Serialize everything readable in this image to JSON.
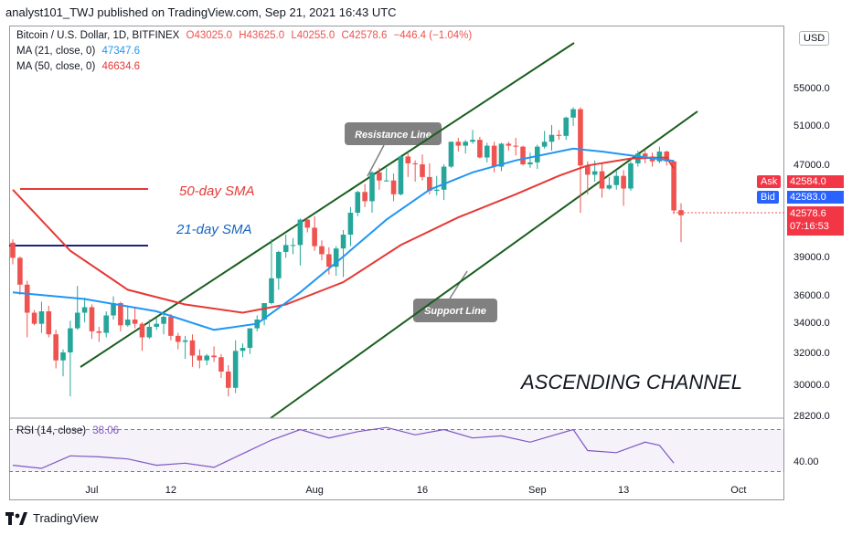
{
  "header": {
    "publisher": "analyst101_TWJ published on TradingView.com, Sep 21, 2021 16:43 UTC"
  },
  "symbol": {
    "title": "Bitcoin / U.S. Dollar, 1D, BITFINEX",
    "open": "O43025.0",
    "high": "H43625.0",
    "low": "L40255.0",
    "close": "C42578.6",
    "change": "−446.4 (−1.04%)"
  },
  "indicators": {
    "ma21_label": "MA (21, close, 0)",
    "ma21_value": "47347.6",
    "ma50_label": "MA (50, close, 0)",
    "ma50_value": "46634.6",
    "rsi_label": "RSI (14, close)",
    "rsi_value": "38.06"
  },
  "annotations": {
    "sma50": "50-day SMA",
    "sma21": "21-day SMA",
    "resistance": "Resistance Line",
    "support": "Support Line",
    "channel": "ASCENDING CHANNEL"
  },
  "price_axis": {
    "currency": "USD",
    "labels": [
      "55000.0",
      "51000.0",
      "47000.0",
      "39000.0",
      "36000.0",
      "34000.0",
      "32000.0",
      "30000.0",
      "28200.0"
    ],
    "ask_label": "Ask",
    "ask_value": "42584.0",
    "bid_label": "Bid",
    "bid_value": "42583.0",
    "last_value": "42578.6",
    "countdown": "07:16:53",
    "rsi_label": "40.00"
  },
  "date_axis": {
    "labels": [
      "Jul",
      "12",
      "Aug",
      "16",
      "Sep",
      "13",
      "Oct"
    ]
  },
  "footer": {
    "brand": "TradingView"
  },
  "colors": {
    "up": "#26a69a",
    "down": "#ef5350",
    "ma21": "#2196f3",
    "ma50": "#e53935",
    "channel": "#1b5e20",
    "rsi": "#7e57c2"
  },
  "chart_data": {
    "type": "candlestick",
    "title": "Bitcoin / U.S. Dollar, 1D, BITFINEX",
    "ylim": [
      28200,
      60000
    ],
    "x_start": "2021-06-20",
    "candles": [
      [
        "06-20",
        40200,
        40500,
        38400,
        38900
      ],
      [
        "06-21",
        38900,
        39000,
        36000,
        36800
      ],
      [
        "06-22",
        36800,
        37100,
        33000,
        34700
      ],
      [
        "06-23",
        34700,
        34900,
        33800,
        33900
      ],
      [
        "06-24",
        33900,
        35500,
        33300,
        34800
      ],
      [
        "06-25",
        34800,
        35200,
        33000,
        33200
      ],
      [
        "06-26",
        33200,
        33500,
        31000,
        31500
      ],
      [
        "06-27",
        31500,
        32200,
        30500,
        32000
      ],
      [
        "06-28",
        32000,
        34100,
        29300,
        33600
      ],
      [
        "06-29",
        33600,
        36700,
        33500,
        34700
      ],
      [
        "06-30",
        34700,
        35800,
        34000,
        35100
      ],
      [
        "07-01",
        35100,
        35300,
        32900,
        33400
      ],
      [
        "07-02",
        33400,
        33700,
        32700,
        33300
      ],
      [
        "07-03",
        33300,
        34800,
        33000,
        34500
      ],
      [
        "07-04",
        34500,
        35900,
        34200,
        35400
      ],
      [
        "07-05",
        35400,
        35500,
        33400,
        33800
      ],
      [
        "07-06",
        33800,
        35100,
        33700,
        34200
      ],
      [
        "07-07",
        34200,
        35100,
        33600,
        33900
      ],
      [
        "07-08",
        33900,
        34000,
        32100,
        33000
      ],
      [
        "07-09",
        33000,
        34200,
        32900,
        33700
      ],
      [
        "07-10",
        33700,
        34300,
        33500,
        33900
      ],
      [
        "07-11",
        33900,
        34600,
        33200,
        34400
      ],
      [
        "07-12",
        34400,
        34600,
        32800,
        33100
      ],
      [
        "07-13",
        33100,
        33300,
        32200,
        32700
      ],
      [
        "07-14",
        32700,
        33100,
        31600,
        32800
      ],
      [
        "07-15",
        32800,
        33200,
        31100,
        31800
      ],
      [
        "07-16",
        31800,
        32200,
        31000,
        31500
      ],
      [
        "07-17",
        31500,
        31900,
        31200,
        31800
      ],
      [
        "07-18",
        31800,
        32400,
        31400,
        31700
      ],
      [
        "07-19",
        31700,
        31900,
        30400,
        30800
      ],
      [
        "07-20",
        30800,
        31200,
        29300,
        29800
      ],
      [
        "07-21",
        29800,
        32800,
        29500,
        32100
      ],
      [
        "07-22",
        32100,
        32600,
        31700,
        32300
      ],
      [
        "07-23",
        32300,
        33600,
        31900,
        33600
      ],
      [
        "07-24",
        33600,
        34500,
        33400,
        34200
      ],
      [
        "07-25",
        34200,
        35400,
        33800,
        35400
      ],
      [
        "07-26",
        35400,
        40500,
        35300,
        37300
      ],
      [
        "07-27",
        37300,
        39500,
        36400,
        39400
      ],
      [
        "07-28",
        39400,
        40900,
        38900,
        40000
      ],
      [
        "07-29",
        40000,
        40600,
        39200,
        40000
      ],
      [
        "07-30",
        40000,
        42300,
        38300,
        42200
      ],
      [
        "07-31",
        42200,
        42400,
        41100,
        41500
      ],
      [
        "08-01",
        41500,
        42500,
        39500,
        39900
      ],
      [
        "08-02",
        39900,
        40400,
        38700,
        39200
      ],
      [
        "08-03",
        39200,
        39800,
        37600,
        38200
      ],
      [
        "08-04",
        38200,
        39900,
        37500,
        39700
      ],
      [
        "08-05",
        39700,
        41300,
        37400,
        40900
      ],
      [
        "08-06",
        40900,
        43300,
        39900,
        42800
      ],
      [
        "08-07",
        42800,
        44700,
        42500,
        44600
      ],
      [
        "08-08",
        44600,
        45300,
        43300,
        43800
      ],
      [
        "08-09",
        43800,
        46400,
        42800,
        46300
      ],
      [
        "08-10",
        46300,
        46700,
        44800,
        45600
      ],
      [
        "08-11",
        45600,
        46700,
        45500,
        45600
      ],
      [
        "08-12",
        45600,
        46200,
        43800,
        44400
      ],
      [
        "08-13",
        44400,
        47900,
        44300,
        47800
      ],
      [
        "08-14",
        47800,
        48100,
        45900,
        47100
      ],
      [
        "08-15",
        47100,
        47400,
        45500,
        47000
      ],
      [
        "08-16",
        47000,
        48000,
        45600,
        45900
      ],
      [
        "08-17",
        45900,
        47100,
        44400,
        44700
      ],
      [
        "08-18",
        44700,
        46000,
        44300,
        44800
      ],
      [
        "08-19",
        44800,
        47000,
        43900,
        46800
      ],
      [
        "08-20",
        46800,
        49300,
        46700,
        49300
      ],
      [
        "08-21",
        49300,
        49700,
        48300,
        48900
      ],
      [
        "08-22",
        48900,
        49500,
        48100,
        49300
      ],
      [
        "08-23",
        49300,
        50500,
        49100,
        49500
      ],
      [
        "08-24",
        49500,
        49800,
        47600,
        47700
      ],
      [
        "08-25",
        47700,
        49200,
        47200,
        48900
      ],
      [
        "08-26",
        48900,
        49300,
        46300,
        46800
      ],
      [
        "08-27",
        46800,
        49200,
        46400,
        49100
      ],
      [
        "08-28",
        49100,
        49300,
        48400,
        48900
      ],
      [
        "08-29",
        48900,
        49700,
        47900,
        48800
      ],
      [
        "08-30",
        48800,
        48900,
        46900,
        47000
      ],
      [
        "08-31",
        47000,
        48200,
        46700,
        47200
      ],
      [
        "09-01",
        47200,
        49000,
        46600,
        48800
      ],
      [
        "09-02",
        48800,
        50400,
        48600,
        49300
      ],
      [
        "09-03",
        49300,
        51000,
        48400,
        50000
      ],
      [
        "09-04",
        50000,
        50500,
        49500,
        49900
      ],
      [
        "09-05",
        49900,
        51900,
        49500,
        51800
      ],
      [
        "09-06",
        51800,
        52900,
        50900,
        52700
      ],
      [
        "09-07",
        52700,
        52900,
        42800,
        46900
      ],
      [
        "09-08",
        46900,
        47300,
        44400,
        46100
      ],
      [
        "09-09",
        46100,
        47400,
        45500,
        46400
      ],
      [
        "09-10",
        46400,
        47100,
        44100,
        44900
      ],
      [
        "09-11",
        44900,
        45900,
        44800,
        45200
      ],
      [
        "09-12",
        45200,
        46500,
        44800,
        46000
      ],
      [
        "09-13",
        46000,
        46500,
        43400,
        44900
      ],
      [
        "09-14",
        44900,
        47300,
        44700,
        47100
      ],
      [
        "09-15",
        47100,
        48400,
        46800,
        48100
      ],
      [
        "09-16",
        48100,
        48500,
        47100,
        47800
      ],
      [
        "09-17",
        47800,
        48200,
        46800,
        47300
      ],
      [
        "09-18",
        47300,
        48800,
        47100,
        48300
      ],
      [
        "09-19",
        48300,
        48400,
        46900,
        47300
      ],
      [
        "09-20",
        47300,
        47400,
        42700,
        43000
      ],
      [
        "09-21",
        43025,
        43625,
        40255,
        42578.6
      ]
    ],
    "ma21": [
      [
        0,
        36200
      ],
      [
        10,
        35700
      ],
      [
        20,
        34800
      ],
      [
        28,
        33500
      ],
      [
        34,
        33900
      ],
      [
        40,
        36200
      ],
      [
        46,
        39000
      ],
      [
        52,
        42200
      ],
      [
        58,
        44800
      ],
      [
        64,
        46300
      ],
      [
        70,
        47400
      ],
      [
        76,
        48300
      ],
      [
        78,
        48600
      ],
      [
        82,
        48300
      ],
      [
        86,
        47900
      ],
      [
        92,
        47347.6
      ]
    ],
    "ma50": [
      [
        0,
        44800
      ],
      [
        8,
        39500
      ],
      [
        16,
        36400
      ],
      [
        24,
        35300
      ],
      [
        32,
        34700
      ],
      [
        38,
        35300
      ],
      [
        46,
        37000
      ],
      [
        54,
        40000
      ],
      [
        62,
        42400
      ],
      [
        70,
        44400
      ],
      [
        76,
        46000
      ],
      [
        80,
        46900
      ],
      [
        86,
        47600
      ],
      [
        91,
        47700
      ],
      [
        92,
        46634.6
      ]
    ],
    "rsi": [
      [
        0,
        36
      ],
      [
        4,
        33
      ],
      [
        8,
        45
      ],
      [
        12,
        44
      ],
      [
        16,
        42
      ],
      [
        20,
        36
      ],
      [
        24,
        38
      ],
      [
        28,
        34
      ],
      [
        32,
        47
      ],
      [
        36,
        60
      ],
      [
        40,
        70
      ],
      [
        44,
        62
      ],
      [
        48,
        68
      ],
      [
        52,
        72
      ],
      [
        56,
        65
      ],
      [
        60,
        70
      ],
      [
        64,
        62
      ],
      [
        68,
        64
      ],
      [
        72,
        58
      ],
      [
        76,
        66
      ],
      [
        78,
        70
      ],
      [
        80,
        50
      ],
      [
        84,
        48
      ],
      [
        88,
        58
      ],
      [
        90,
        55
      ],
      [
        92,
        38.06
      ]
    ],
    "rsi_levels": [
      70,
      30
    ]
  }
}
